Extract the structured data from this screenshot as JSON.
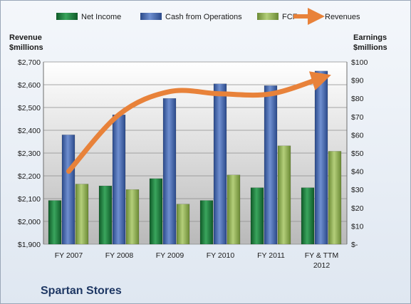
{
  "chart_data": {
    "type": "bar",
    "title": "Spartan Stores",
    "categories": [
      "FY 2007",
      "FY 2008",
      "FY 2009",
      "FY 2010",
      "FY 2011",
      "FY & TTM 2012"
    ],
    "series": [
      {
        "name": "Net Income",
        "axis": "right",
        "color": "#1e7a3c",
        "values": [
          24,
          32,
          36,
          24,
          31,
          31
        ]
      },
      {
        "name": "Cash from Operations",
        "axis": "right",
        "color": "#3f62a8",
        "values": [
          60,
          71,
          80,
          88,
          87,
          95
        ]
      },
      {
        "name": "FCF",
        "axis": "right",
        "color": "#8cad4f",
        "values": [
          33,
          30,
          22,
          38,
          54,
          51
        ]
      },
      {
        "name": "Revenues",
        "axis": "left",
        "type": "line",
        "color": "#e8823a",
        "values": [
          2220,
          2470,
          2570,
          2560,
          2560,
          2630
        ]
      }
    ],
    "y_left": {
      "label_line1": "Revenue",
      "label_line2": "$millions",
      "min": 1900,
      "max": 2700,
      "step": 100,
      "ticks": [
        "$1,900",
        "$2,000",
        "$2,100",
        "$2,200",
        "$2,300",
        "$2,400",
        "$2,500",
        "$2,600",
        "$2,700"
      ]
    },
    "y_right": {
      "label_line1": "Earnings",
      "label_line2": "$millions",
      "min": 0,
      "max": 100,
      "step": 10,
      "ticks": [
        "$-",
        "$10",
        "$20",
        "$30",
        "$40",
        "$50",
        "$60",
        "$70",
        "$80",
        "$90",
        "$100"
      ]
    },
    "category_labels": [
      [
        "FY 2007"
      ],
      [
        "FY 2008"
      ],
      [
        "FY 2009"
      ],
      [
        "FY 2010"
      ],
      [
        "FY 2011"
      ],
      [
        "FY & TTM",
        "2012"
      ]
    ],
    "legend_position": "top",
    "grid": true
  }
}
